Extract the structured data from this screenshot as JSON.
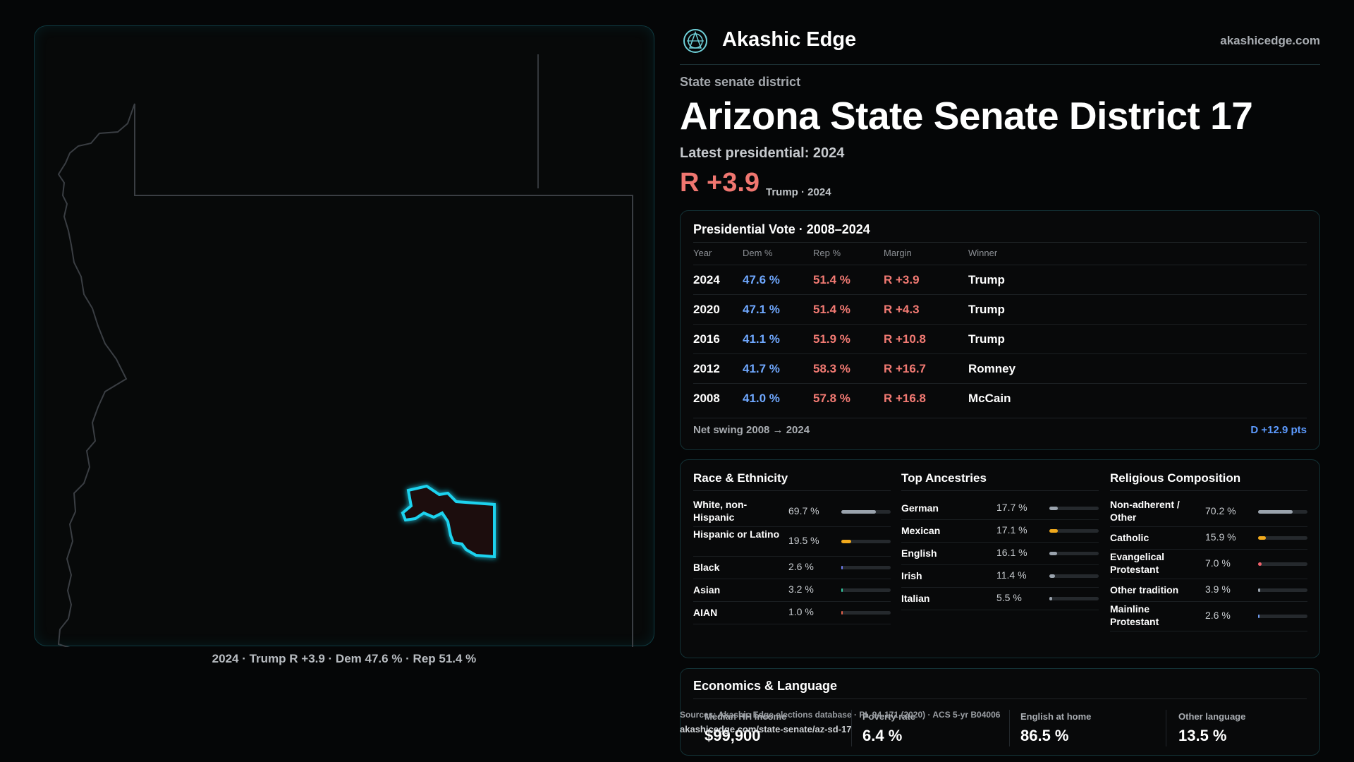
{
  "map": {
    "caption": "2024 · Trump R +3.9 · Dem 47.6 % · Rep 51.4 %"
  },
  "brand": {
    "name": "Akashic Edge",
    "url": "akashicedge.com",
    "logo_icon": "akashic-edge-logo-icon"
  },
  "header": {
    "subtitle": "State senate district",
    "title": "Arizona State Senate District 17",
    "latest": "Latest presidential: 2024",
    "margin": "R +3.9",
    "margin_sub": "Trump · 2024"
  },
  "presidential": {
    "title": "Presidential Vote · 2008–2024",
    "headers": [
      "Year",
      "Dem %",
      "Rep %",
      "Margin",
      "Winner"
    ],
    "rows": [
      {
        "year": "2024",
        "dem": "47.6 %",
        "rep": "51.4 %",
        "margin": "R +3.9",
        "winner": "Trump"
      },
      {
        "year": "2020",
        "dem": "47.1 %",
        "rep": "51.4 %",
        "margin": "R +4.3",
        "winner": "Trump"
      },
      {
        "year": "2016",
        "dem": "41.1 %",
        "rep": "51.9 %",
        "margin": "R +10.8",
        "winner": "Trump"
      },
      {
        "year": "2012",
        "dem": "41.7 %",
        "rep": "58.3 %",
        "margin": "R +16.7",
        "winner": "Romney"
      },
      {
        "year": "2008",
        "dem": "41.0 %",
        "rep": "57.8 %",
        "margin": "R +16.8",
        "winner": "McCain"
      }
    ],
    "swing_label": "Net swing 2008 → 2024",
    "swing_value": "D +12.9 pts"
  },
  "demographics": {
    "race": {
      "title": "Race & Ethnicity",
      "items": [
        {
          "label": "White, non-Hispanic",
          "value": "69.7 %",
          "pct": 69.7,
          "color": "#9aa3ad"
        },
        {
          "label": "Hispanic or Latino",
          "value": "19.5 %",
          "pct": 19.5,
          "color": "#f0a91c"
        },
        {
          "label": "Black",
          "value": "2.6 %",
          "pct": 2.6,
          "color": "#6f7cf0"
        },
        {
          "label": "Asian",
          "value": "3.2 %",
          "pct": 3.2,
          "color": "#35c9a0"
        },
        {
          "label": "AIAN",
          "value": "1.0 %",
          "pct": 1.0,
          "color": "#e0604a"
        }
      ]
    },
    "ancestry": {
      "title": "Top Ancestries",
      "items": [
        {
          "label": "German",
          "value": "17.7 %",
          "pct": 17.7,
          "color": "#9aa3ad"
        },
        {
          "label": "Mexican",
          "value": "17.1 %",
          "pct": 17.1,
          "color": "#f0a91c"
        },
        {
          "label": "English",
          "value": "16.1 %",
          "pct": 16.1,
          "color": "#9aa3ad"
        },
        {
          "label": "Irish",
          "value": "11.4 %",
          "pct": 11.4,
          "color": "#9aa3ad"
        },
        {
          "label": "Italian",
          "value": "5.5 %",
          "pct": 5.5,
          "color": "#9aa3ad"
        }
      ]
    },
    "religion": {
      "title": "Religious Composition",
      "items": [
        {
          "label": "Non-adherent / Other",
          "value": "70.2 %",
          "pct": 70.2,
          "color": "#9aa3ad"
        },
        {
          "label": "Catholic",
          "value": "15.9 %",
          "pct": 15.9,
          "color": "#f0a91c"
        },
        {
          "label": "Evangelical Protestant",
          "value": "7.0 %",
          "pct": 7.0,
          "color": "#f0606a"
        },
        {
          "label": "Other tradition",
          "value": "3.9 %",
          "pct": 3.9,
          "color": "#9aa3ad"
        },
        {
          "label": "Mainline Protestant",
          "value": "2.6 %",
          "pct": 2.6,
          "color": "#6f9cf0"
        }
      ]
    }
  },
  "economics": {
    "title": "Economics & Language",
    "cells": [
      {
        "label": "Median HH income",
        "value": "$99,900"
      },
      {
        "label": "Poverty rate",
        "value": "6.4 %"
      },
      {
        "label": "English at home",
        "value": "86.5 %"
      },
      {
        "label": "Other language",
        "value": "13.5 %"
      }
    ]
  },
  "footer": {
    "sources": "Sources: Akashic Edge elections database · PL 94-171 (2020) · ACS 5-yr B04006",
    "url": "akashicedge.com/state-senate/az-sd-17"
  }
}
